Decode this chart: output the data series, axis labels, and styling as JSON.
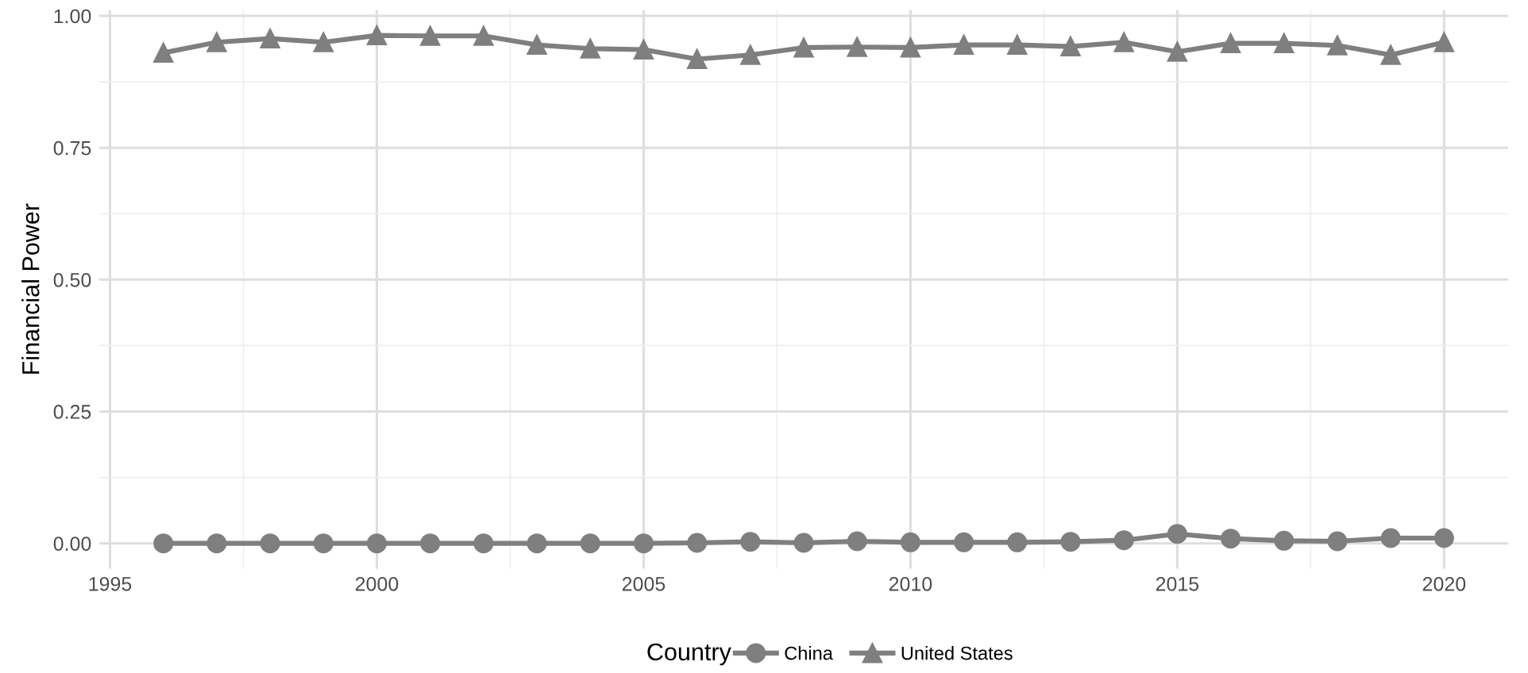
{
  "chart_data": {
    "type": "line",
    "ylabel": "Financial Power",
    "legend_title": "Country",
    "legend": "bottom",
    "grid": true,
    "x": [
      1996,
      1997,
      1998,
      1999,
      2000,
      2001,
      2002,
      2003,
      2004,
      2005,
      2006,
      2007,
      2008,
      2009,
      2010,
      2011,
      2012,
      2013,
      2014,
      2015,
      2016,
      2017,
      2018,
      2019,
      2020
    ],
    "xlim": [
      1994.8,
      2021.2
    ],
    "xticks": [
      1995,
      2000,
      2005,
      2010,
      2015,
      2020
    ],
    "ylim": [
      -0.048,
      1.011
    ],
    "yticks": [
      {
        "value": 0,
        "label": "0.00"
      },
      {
        "value": 0.25,
        "label": "0.25"
      },
      {
        "value": 0.5,
        "label": "0.50"
      },
      {
        "value": 0.75,
        "label": "0.75"
      },
      {
        "value": 1,
        "label": "1.00"
      }
    ],
    "series": [
      {
        "name": "China",
        "color": "#7f7f7f",
        "marker": "circle",
        "values": [
          0,
          0,
          0,
          0,
          0,
          0,
          0,
          0,
          0,
          0,
          0.001,
          0.003,
          0.001,
          0.004,
          0.002,
          0.002,
          0.002,
          0.003,
          0.006,
          0.018,
          0.009,
          0.005,
          0.004,
          0.01,
          0.01
        ]
      },
      {
        "name": "United States",
        "color": "#7f7f7f",
        "marker": "triangle",
        "values": [
          0.93,
          0.95,
          0.957,
          0.95,
          0.963,
          0.962,
          0.962,
          0.945,
          0.938,
          0.936,
          0.918,
          0.926,
          0.94,
          0.941,
          0.94,
          0.945,
          0.945,
          0.942,
          0.95,
          0.932,
          0.948,
          0.948,
          0.944,
          0.926,
          0.95
        ]
      }
    ]
  }
}
